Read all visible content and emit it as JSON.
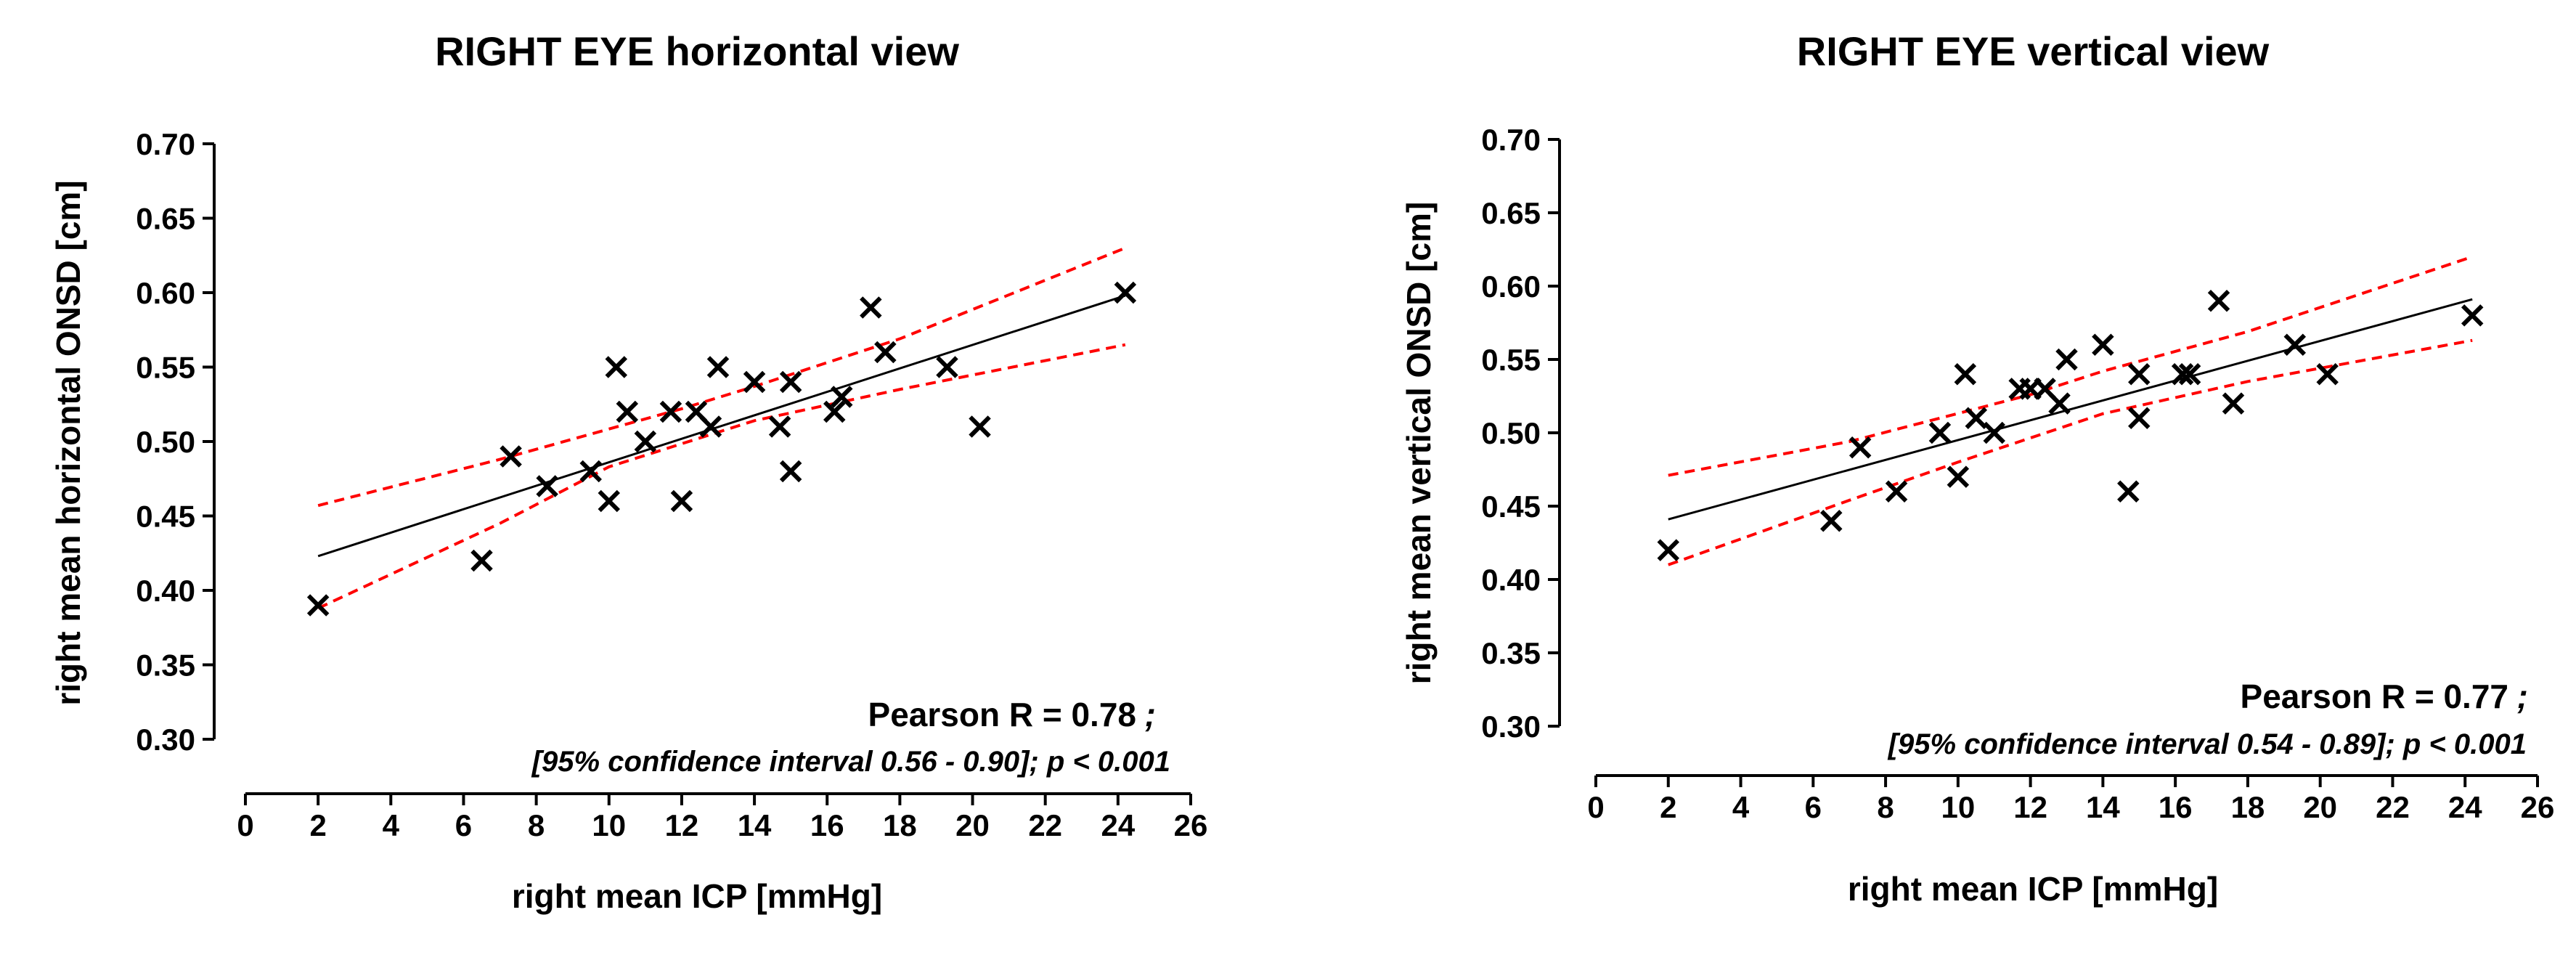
{
  "chart_data": [
    {
      "type": "scatter",
      "title": "RIGHT EYE horizontal view",
      "xlabel": "right mean ICP [mmHg]",
      "ylabel": "right mean horizontal ONSD  [cm]",
      "xlim": [
        0,
        26
      ],
      "ylim": [
        0.3,
        0.7
      ],
      "x_ticks": [
        "0",
        "2",
        "4",
        "6",
        "8",
        "10",
        "12",
        "14",
        "16",
        "18",
        "20",
        "22",
        "24",
        "26"
      ],
      "y_ticks": [
        "0.30",
        "0.35",
        "0.40",
        "0.45",
        "0.50",
        "0.55",
        "0.60",
        "0.65",
        "0.70"
      ],
      "annotation_main": "Pearson R = 0.78",
      "annotation_sep": ";",
      "annotation_sub": "[95% confidence interval 0.56 - 0.90]; p < 0.001",
      "points": [
        {
          "x": 2.0,
          "y": 0.39
        },
        {
          "x": 6.5,
          "y": 0.42
        },
        {
          "x": 7.3,
          "y": 0.49
        },
        {
          "x": 8.3,
          "y": 0.47
        },
        {
          "x": 9.5,
          "y": 0.48
        },
        {
          "x": 10.0,
          "y": 0.46
        },
        {
          "x": 10.2,
          "y": 0.55
        },
        {
          "x": 10.5,
          "y": 0.52
        },
        {
          "x": 11.0,
          "y": 0.5
        },
        {
          "x": 11.7,
          "y": 0.52
        },
        {
          "x": 12.0,
          "y": 0.46
        },
        {
          "x": 12.4,
          "y": 0.52
        },
        {
          "x": 12.8,
          "y": 0.51
        },
        {
          "x": 13.0,
          "y": 0.55
        },
        {
          "x": 14.0,
          "y": 0.54
        },
        {
          "x": 14.7,
          "y": 0.51
        },
        {
          "x": 15.0,
          "y": 0.54
        },
        {
          "x": 15.0,
          "y": 0.48
        },
        {
          "x": 16.2,
          "y": 0.52
        },
        {
          "x": 16.4,
          "y": 0.53
        },
        {
          "x": 17.2,
          "y": 0.59
        },
        {
          "x": 17.6,
          "y": 0.56
        },
        {
          "x": 19.3,
          "y": 0.55
        },
        {
          "x": 20.2,
          "y": 0.51
        },
        {
          "x": 24.2,
          "y": 0.6
        }
      ],
      "fit_line": {
        "x": [
          2.0,
          24.2
        ],
        "y": [
          0.423,
          0.598
        ],
        "color": "#000000"
      },
      "ci_upper": {
        "x": [
          2.0,
          7.0,
          12.0,
          14.0,
          18.0,
          24.2
        ],
        "y": [
          0.457,
          0.488,
          0.522,
          0.537,
          0.569,
          0.63
        ],
        "color": "#ff0000"
      },
      "ci_lower": {
        "x": [
          2.0,
          7.0,
          10.0,
          14.0,
          18.0,
          24.2
        ],
        "y": [
          0.388,
          0.445,
          0.483,
          0.514,
          0.535,
          0.565
        ],
        "color": "#ff0000"
      }
    },
    {
      "type": "scatter",
      "title": "RIGHT EYE vertical view",
      "xlabel": "right mean ICP [mmHg]",
      "ylabel": "right mean vertical ONSD  [cm]",
      "xlim": [
        0,
        26
      ],
      "ylim": [
        0.3,
        0.7
      ],
      "x_ticks": [
        "0",
        "2",
        "4",
        "6",
        "8",
        "10",
        "12",
        "14",
        "16",
        "18",
        "20",
        "22",
        "24",
        "26"
      ],
      "y_ticks": [
        "0.30",
        "0.35",
        "0.40",
        "0.45",
        "0.50",
        "0.55",
        "0.60",
        "0.65",
        "0.70"
      ],
      "annotation_main": "Pearson R = 0.77",
      "annotation_sep": ";",
      "annotation_sub": "[95% confidence interval 0.54 - 0.89]; p < 0.001",
      "points": [
        {
          "x": 2.0,
          "y": 0.42
        },
        {
          "x": 6.5,
          "y": 0.44
        },
        {
          "x": 7.3,
          "y": 0.49
        },
        {
          "x": 8.3,
          "y": 0.46
        },
        {
          "x": 9.5,
          "y": 0.5
        },
        {
          "x": 10.0,
          "y": 0.47
        },
        {
          "x": 10.2,
          "y": 0.54
        },
        {
          "x": 10.5,
          "y": 0.51
        },
        {
          "x": 11.0,
          "y": 0.5
        },
        {
          "x": 11.7,
          "y": 0.53
        },
        {
          "x": 12.0,
          "y": 0.53
        },
        {
          "x": 12.4,
          "y": 0.53
        },
        {
          "x": 12.8,
          "y": 0.52
        },
        {
          "x": 13.0,
          "y": 0.55
        },
        {
          "x": 14.0,
          "y": 0.56
        },
        {
          "x": 14.7,
          "y": 0.46
        },
        {
          "x": 15.0,
          "y": 0.54
        },
        {
          "x": 15.0,
          "y": 0.51
        },
        {
          "x": 16.2,
          "y": 0.54
        },
        {
          "x": 16.4,
          "y": 0.54
        },
        {
          "x": 17.2,
          "y": 0.59
        },
        {
          "x": 17.6,
          "y": 0.52
        },
        {
          "x": 19.3,
          "y": 0.56
        },
        {
          "x": 20.2,
          "y": 0.54
        },
        {
          "x": 24.2,
          "y": 0.58
        }
      ],
      "fit_line": {
        "x": [
          2.0,
          24.2
        ],
        "y": [
          0.441,
          0.591
        ],
        "color": "#000000"
      },
      "ci_upper": {
        "x": [
          2.0,
          7.0,
          12.0,
          14.0,
          18.0,
          24.2
        ],
        "y": [
          0.471,
          0.494,
          0.526,
          0.542,
          0.569,
          0.62
        ],
        "color": "#ff0000"
      },
      "ci_lower": {
        "x": [
          2.0,
          7.0,
          10.0,
          14.0,
          18.0,
          24.2
        ],
        "y": [
          0.41,
          0.454,
          0.48,
          0.513,
          0.535,
          0.563
        ],
        "color": "#ff0000"
      }
    }
  ]
}
